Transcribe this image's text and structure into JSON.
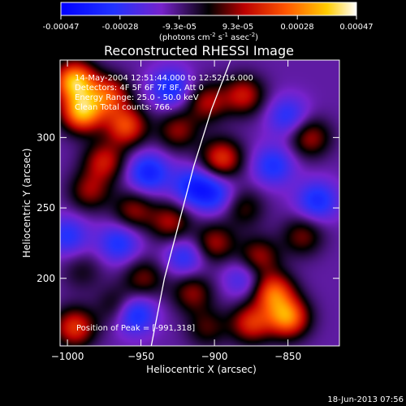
{
  "chart_data": {
    "type": "heatmap",
    "title": "Reconstructed RHESSI Image",
    "xlabel": "Heliocentric X (arcsec)",
    "ylabel": "Heliocentric Y (arcsec)",
    "xlim": [
      -1005,
      -815
    ],
    "ylim": [
      152,
      355
    ],
    "xticks": [
      -1000,
      -950,
      -900,
      -850
    ],
    "yticks": [
      200,
      250,
      300
    ],
    "colorbar": {
      "ticks": [
        "-0.00047",
        "-0.00028",
        "-9.3e-05",
        "9.3e-05",
        "0.00028",
        "0.00047"
      ],
      "units_prefix": "(photons cm",
      "units_exp1": "-2",
      "units_mid": " s",
      "units_exp2": "-1",
      "units_asec": " asec",
      "units_exp3": "-2",
      "units_close": ")",
      "range": [
        -0.00047,
        0.00047
      ]
    },
    "annotations": {
      "time_range": "14-May-2004 12:51:44.000 to 12:52:16.000",
      "detectors": "Detectors: 4F 5F 6F 7F 8F, Att 0",
      "energy": "Energy Range: 25.0 - 50.0 keV",
      "counts": "Clean    Total counts: 766.",
      "peak": "Position of Peak = [-991,318]"
    },
    "limb_curve": [
      [
        -943,
        152
      ],
      [
        -934,
        200
      ],
      [
        -924,
        240
      ],
      [
        -914,
        280
      ],
      [
        -902,
        320
      ],
      [
        -889,
        355
      ]
    ],
    "sources": [
      {
        "x": -995,
        "y": 340,
        "v": 0.00047
      },
      {
        "x": -990,
        "y": 318,
        "v": 0.00045
      },
      {
        "x": -972,
        "y": 330,
        "v": 0.0003
      },
      {
        "x": -975,
        "y": 283,
        "v": 0.00025
      },
      {
        "x": -985,
        "y": 262,
        "v": 0.0002
      },
      {
        "x": -960,
        "y": 308,
        "v": 0.00032
      },
      {
        "x": -955,
        "y": 248,
        "v": 0.0002
      },
      {
        "x": -990,
        "y": 205,
        "v": 0.0001
      },
      {
        "x": -995,
        "y": 165,
        "v": 0.0003
      },
      {
        "x": -965,
        "y": 180,
        "v": 0.00018
      },
      {
        "x": -948,
        "y": 200,
        "v": 0.00018
      },
      {
        "x": -930,
        "y": 240,
        "v": 0.00022
      },
      {
        "x": -925,
        "y": 305,
        "v": 0.0002
      },
      {
        "x": -905,
        "y": 325,
        "v": 0.00022
      },
      {
        "x": -880,
        "y": 330,
        "v": 0.00025
      },
      {
        "x": -895,
        "y": 285,
        "v": 0.0003
      },
      {
        "x": -880,
        "y": 250,
        "v": 0.00015
      },
      {
        "x": -900,
        "y": 225,
        "v": 0.00022
      },
      {
        "x": -915,
        "y": 190,
        "v": 0.0002
      },
      {
        "x": -870,
        "y": 215,
        "v": 0.00022
      },
      {
        "x": -860,
        "y": 190,
        "v": 0.00035
      },
      {
        "x": -850,
        "y": 172,
        "v": 0.0004
      },
      {
        "x": -875,
        "y": 168,
        "v": 0.00028
      },
      {
        "x": -835,
        "y": 300,
        "v": 0.00022
      },
      {
        "x": -840,
        "y": 230,
        "v": 0.00018
      },
      {
        "x": -905,
        "y": 165,
        "v": 0.00015
      },
      {
        "x": -965,
        "y": 225,
        "v": -0.0002
      },
      {
        "x": -945,
        "y": 275,
        "v": -0.00025
      },
      {
        "x": -915,
        "y": 265,
        "v": -0.00022
      },
      {
        "x": -955,
        "y": 175,
        "v": -0.00028
      },
      {
        "x": -860,
        "y": 280,
        "v": -0.0002
      },
      {
        "x": -900,
        "y": 260,
        "v": -0.0002
      },
      {
        "x": -850,
        "y": 315,
        "v": -0.00018
      },
      {
        "x": -930,
        "y": 335,
        "v": -0.00022
      },
      {
        "x": -880,
        "y": 200,
        "v": -0.00015
      },
      {
        "x": -830,
        "y": 255,
        "v": -0.00022
      },
      {
        "x": -1000,
        "y": 230,
        "v": -0.00018
      },
      {
        "x": -920,
        "y": 215,
        "v": -0.00018
      }
    ]
  },
  "footer": {
    "timestamp": "18-Jun-2013 07:56"
  },
  "colors": {
    "background": "#000000",
    "foreground": "#ffffff",
    "limb": "#ffffff"
  }
}
